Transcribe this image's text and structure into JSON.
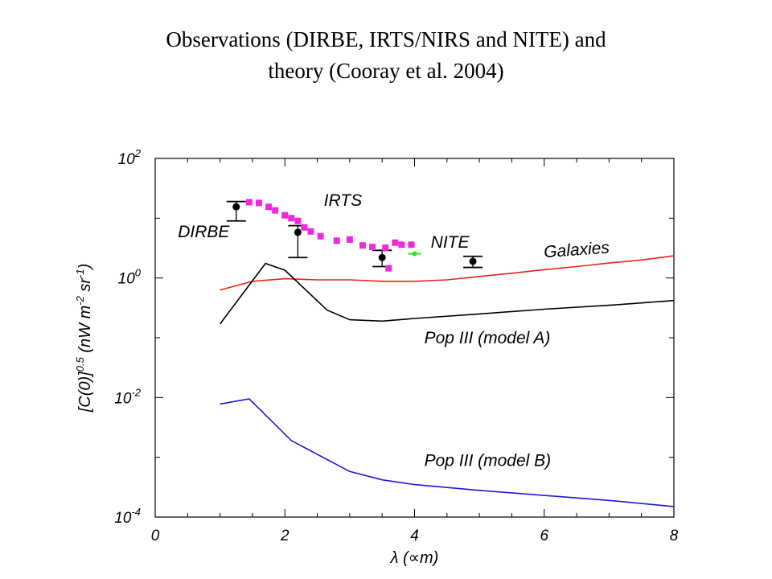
{
  "slide": {
    "title_line1": "Observations (DIRBE, IRTS/NIRS and NITE) and",
    "title_line2": "theory (Cooray et al. 2004)"
  },
  "chart_data": {
    "type": "line",
    "xlabel": "λ (∝m)",
    "ylabel": "[C(0)]^0.5 (nW m^-2 sr^-1)",
    "xlim": [
      0,
      8
    ],
    "ylim": [
      0.0001,
      100
    ],
    "yscale": "log",
    "x_ticks": [
      "0",
      "2",
      "4",
      "6",
      "8"
    ],
    "y_ticks": [
      {
        "base": "10",
        "exp": "2",
        "value": 100
      },
      {
        "base": "10",
        "exp": "0",
        "value": 1
      },
      {
        "base": "10",
        "exp": "-2",
        "value": 0.01
      },
      {
        "base": "10",
        "exp": "-4",
        "value": 0.0001
      }
    ],
    "series": [
      {
        "name": "Galaxies",
        "color": "#e8231e",
        "x": [
          1.0,
          1.5,
          2.0,
          2.5,
          3.0,
          3.5,
          4.0,
          4.5,
          5.0,
          5.5,
          6.0,
          6.5,
          7.0,
          7.5,
          8.0
        ],
        "y": [
          0.63,
          0.88,
          0.97,
          0.93,
          0.93,
          0.88,
          0.88,
          0.93,
          1.06,
          1.2,
          1.38,
          1.55,
          1.78,
          2.0,
          2.35
        ]
      },
      {
        "name": "Pop III (model A)",
        "color": "#000000",
        "x": [
          1.0,
          1.7,
          2.0,
          2.65,
          3.0,
          3.5,
          4.0,
          5.0,
          6.0,
          7.0,
          8.0
        ],
        "y": [
          0.17,
          1.75,
          1.35,
          0.29,
          0.2,
          0.19,
          0.21,
          0.25,
          0.3,
          0.35,
          0.42
        ]
      },
      {
        "name": "Pop III (model B)",
        "color": "#1a1ad6",
        "x": [
          1.0,
          1.45,
          2.1,
          3.0,
          3.5,
          4.0,
          5.0,
          6.0,
          7.0,
          8.0
        ],
        "y": [
          0.0078,
          0.0095,
          0.0019,
          0.00058,
          0.00042,
          0.00035,
          0.00028,
          0.00023,
          0.00019,
          0.00015
        ]
      }
    ],
    "dirbe_points": {
      "color": "#000000",
      "points": [
        {
          "x": 1.25,
          "y": 15.5,
          "y_low": 9.0,
          "y_high": 19.0
        },
        {
          "x": 2.2,
          "y": 5.8,
          "y_low": 2.2,
          "y_high": 7.5
        },
        {
          "x": 3.5,
          "y": 2.2,
          "y_low": 1.55,
          "y_high": 2.9
        },
        {
          "x": 4.9,
          "y": 1.9,
          "y_low": 1.5,
          "y_high": 2.3
        }
      ]
    },
    "irts_points": {
      "color": "#ee2ad8",
      "points": [
        {
          "x": 1.45,
          "y": 18.5
        },
        {
          "x": 1.6,
          "y": 18.0
        },
        {
          "x": 1.75,
          "y": 15.5
        },
        {
          "x": 1.85,
          "y": 13.5
        },
        {
          "x": 2.0,
          "y": 11.2
        },
        {
          "x": 2.1,
          "y": 10.0
        },
        {
          "x": 2.2,
          "y": 9.0
        },
        {
          "x": 2.3,
          "y": 7.0
        },
        {
          "x": 2.4,
          "y": 6.0
        },
        {
          "x": 2.55,
          "y": 5.0
        },
        {
          "x": 2.8,
          "y": 4.2
        },
        {
          "x": 3.0,
          "y": 4.4
        },
        {
          "x": 3.2,
          "y": 3.5
        },
        {
          "x": 3.35,
          "y": 3.3
        },
        {
          "x": 3.55,
          "y": 3.2
        },
        {
          "x": 3.7,
          "y": 3.9
        },
        {
          "x": 3.8,
          "y": 3.6
        },
        {
          "x": 3.6,
          "y": 1.45
        },
        {
          "x": 3.95,
          "y": 3.6
        }
      ]
    },
    "nite_points": {
      "color": "#33dd33",
      "points": [
        {
          "x": 4.0,
          "y": 2.55,
          "x_err": 0.1
        }
      ]
    },
    "annotations": [
      {
        "text": "DIRBE",
        "x": 0.35,
        "y": 4.8
      },
      {
        "text": "IRTS",
        "x": 2.6,
        "y": 16.0
      },
      {
        "text": "NITE",
        "x": 4.25,
        "y": 3.2
      },
      {
        "text": "Galaxies",
        "x": 6.0,
        "y": 2.2
      },
      {
        "text": "Pop III (model A)",
        "x": 4.15,
        "y": 0.08
      },
      {
        "text": "Pop III (model B)",
        "x": 4.15,
        "y": 0.00072
      }
    ]
  }
}
